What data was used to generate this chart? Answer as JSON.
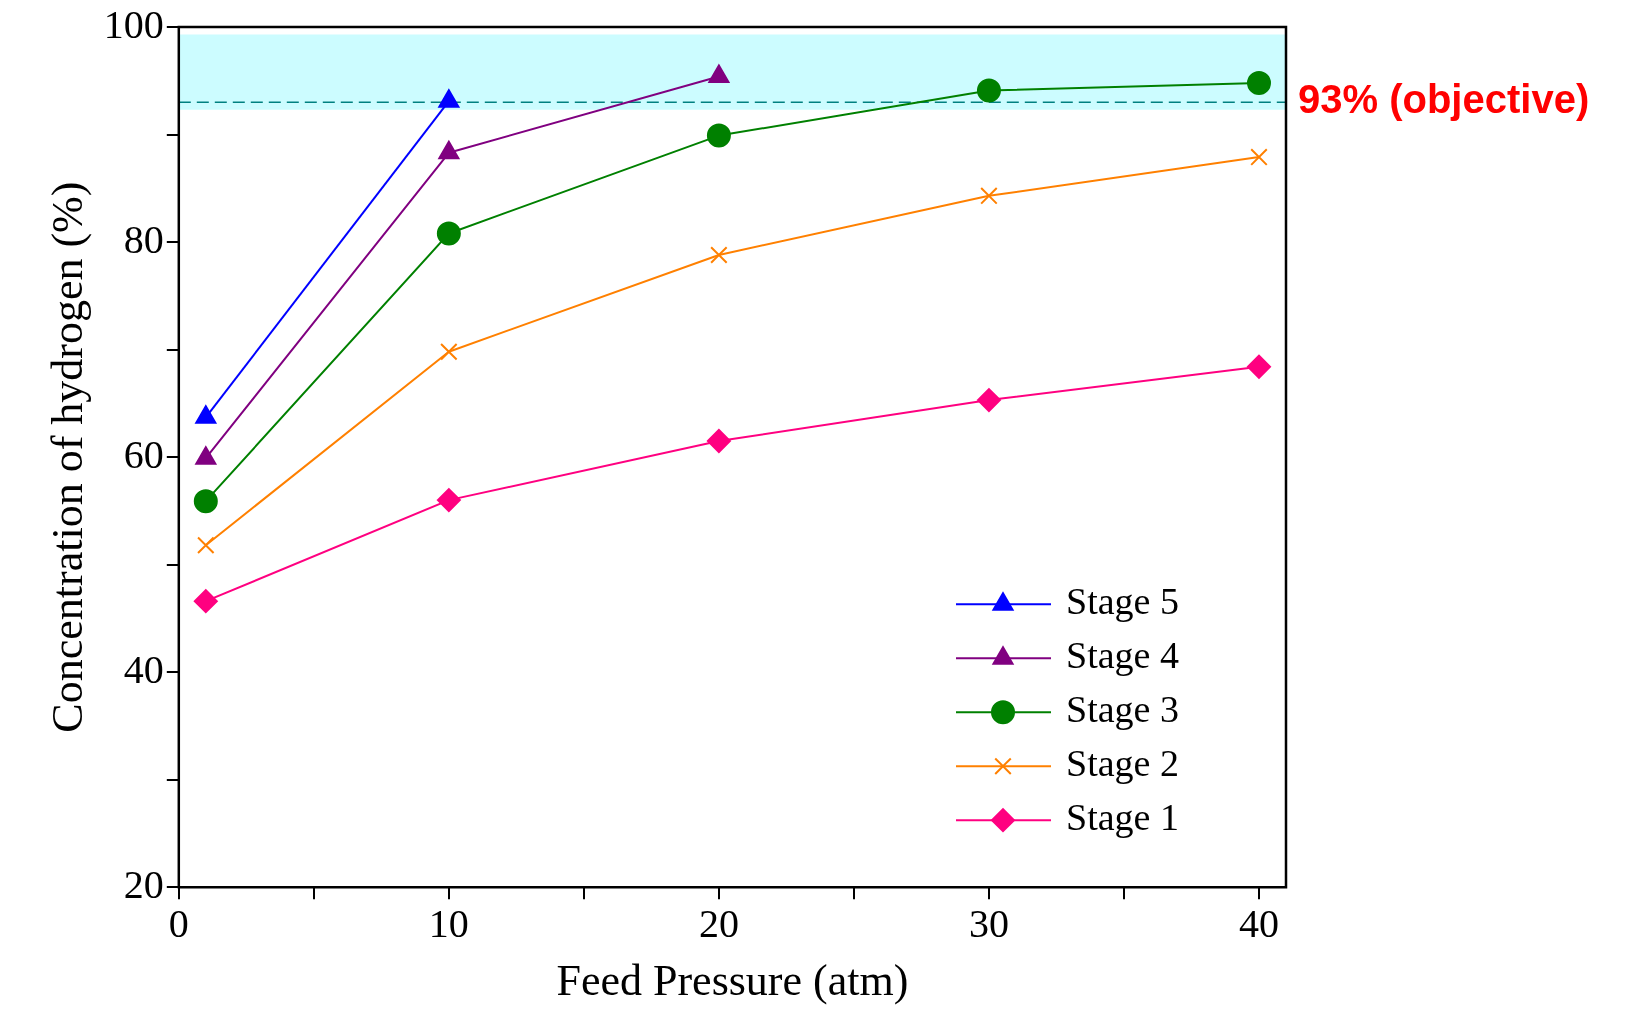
{
  "chart_data": {
    "type": "line",
    "xlabel": "Feed Pressure (atm)",
    "ylabel": "Concentration of hydrogen (%)",
    "xlim": [
      0,
      41
    ],
    "xticks": [
      0,
      {
        "value": 5,
        "label": null
      },
      10,
      {
        "value": 15,
        "label": null
      },
      20,
      {
        "value": 25,
        "label": null
      },
      30,
      {
        "value": 35,
        "label": null
      },
      40
    ],
    "ylim": [
      20,
      100
    ],
    "yticks": [
      20,
      {
        "value": 30,
        "label": null
      },
      40,
      {
        "value": 50,
        "label": null
      },
      60,
      {
        "value": 70,
        "label": null
      },
      80,
      {
        "value": 90,
        "label": null
      },
      100
    ],
    "grid": false,
    "legend": "bottom right",
    "series": [
      {
        "name": "Stage 5",
        "color": "#0000ff",
        "marker": "triangle",
        "x": [
          1,
          10
        ],
        "values": [
          63.7,
          93.1
        ]
      },
      {
        "name": "Stage 4",
        "color": "#800080",
        "marker": "triangle",
        "x": [
          1,
          10,
          20
        ],
        "values": [
          59.9,
          88.3,
          95.4
        ]
      },
      {
        "name": "Stage 3",
        "color": "#008000",
        "marker": "circle",
        "x": [
          1,
          10,
          20,
          30,
          40
        ],
        "values": [
          55.9,
          80.8,
          89.9,
          94.1,
          94.8
        ]
      },
      {
        "name": "Stage 2",
        "color": "#ff8000",
        "marker": "cross",
        "x": [
          1,
          10,
          20,
          30,
          40
        ],
        "values": [
          51.8,
          69.8,
          78.8,
          84.3,
          87.9
        ]
      },
      {
        "name": "Stage 1",
        "color": "#ff0080",
        "marker": "diamond",
        "x": [
          1,
          10,
          20,
          30,
          40
        ],
        "values": [
          46.6,
          56.0,
          61.5,
          65.3,
          68.4
        ]
      }
    ],
    "bands": [
      {
        "axis": "y",
        "from": 92.3,
        "to": 99.3,
        "color": "#ccfcff"
      }
    ],
    "ref_lines": [
      {
        "axis": "y",
        "value": 93,
        "label": "93% (objective)",
        "color": "#008080",
        "line_style": "dashed"
      }
    ]
  }
}
